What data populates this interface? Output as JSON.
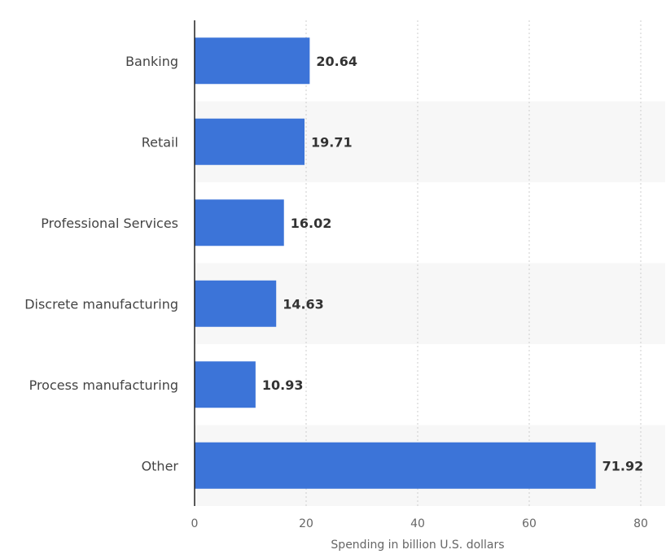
{
  "chart_data": {
    "type": "bar",
    "orientation": "horizontal",
    "categories": [
      "Banking",
      "Retail",
      "Professional Services",
      "Discrete manufacturing",
      "Process manufacturing",
      "Other"
    ],
    "values": [
      20.64,
      19.71,
      16.02,
      14.63,
      10.93,
      71.92
    ],
    "value_labels": [
      "20.64",
      "19.71",
      "16.02",
      "14.63",
      "10.93",
      "71.92"
    ],
    "xlabel": "Spending in billion U.S. dollars",
    "ylabel": "",
    "xlim": [
      0,
      80
    ],
    "xticks": [
      0,
      20,
      40,
      60,
      80
    ],
    "xtick_labels": [
      "0",
      "20",
      "40",
      "60",
      "80"
    ],
    "grid": true,
    "bar_color": "#3c74d8",
    "band_color": "#f7f7f7"
  }
}
